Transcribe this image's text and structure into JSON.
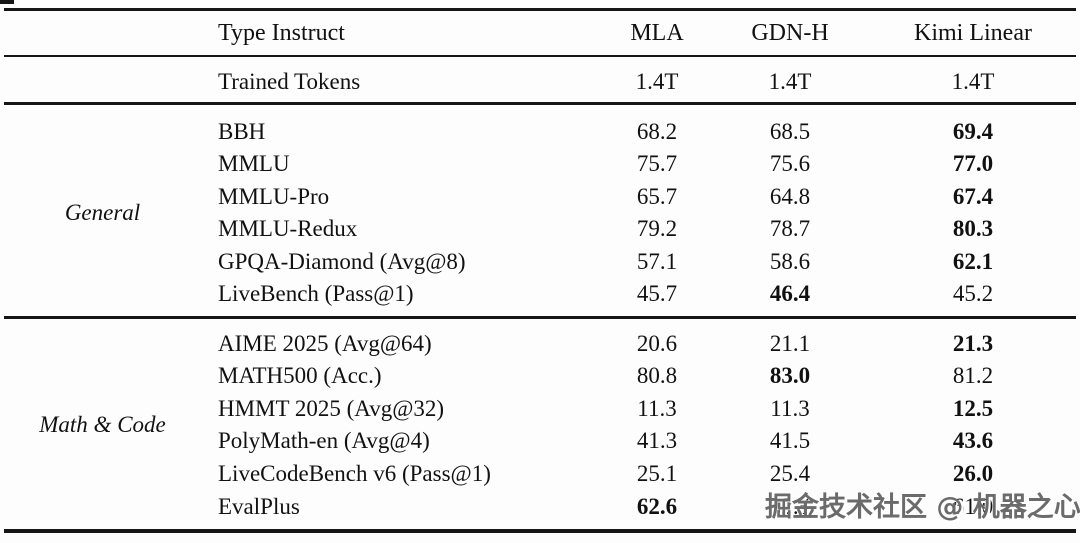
{
  "table": {
    "header": {
      "row_label": "Type Instruct",
      "columns": [
        "MLA",
        "GDN-H",
        "Kimi Linear"
      ]
    },
    "meta_row": {
      "label": "Trained Tokens",
      "values": [
        "1.4T",
        "1.4T",
        "1.4T"
      ]
    },
    "sections": [
      {
        "group": "General",
        "rows": [
          {
            "label": "BBH",
            "cells": [
              {
                "v": "68.2",
                "bold": false
              },
              {
                "v": "68.5",
                "bold": false
              },
              {
                "v": "69.4",
                "bold": true
              }
            ]
          },
          {
            "label": "MMLU",
            "cells": [
              {
                "v": "75.7",
                "bold": false
              },
              {
                "v": "75.6",
                "bold": false
              },
              {
                "v": "77.0",
                "bold": true
              }
            ]
          },
          {
            "label": "MMLU-Pro",
            "cells": [
              {
                "v": "65.7",
                "bold": false
              },
              {
                "v": "64.8",
                "bold": false
              },
              {
                "v": "67.4",
                "bold": true
              }
            ]
          },
          {
            "label": "MMLU-Redux",
            "cells": [
              {
                "v": "79.2",
                "bold": false
              },
              {
                "v": "78.7",
                "bold": false
              },
              {
                "v": "80.3",
                "bold": true
              }
            ]
          },
          {
            "label": "GPQA-Diamond (Avg@8)",
            "cells": [
              {
                "v": "57.1",
                "bold": false
              },
              {
                "v": "58.6",
                "bold": false
              },
              {
                "v": "62.1",
                "bold": true
              }
            ]
          },
          {
            "label": "LiveBench (Pass@1)",
            "cells": [
              {
                "v": "45.7",
                "bold": false
              },
              {
                "v": "46.4",
                "bold": true
              },
              {
                "v": "45.2",
                "bold": false
              }
            ]
          }
        ]
      },
      {
        "group": "Math & Code",
        "rows": [
          {
            "label": "AIME 2025 (Avg@64)",
            "cells": [
              {
                "v": "20.6",
                "bold": false
              },
              {
                "v": "21.1",
                "bold": false
              },
              {
                "v": "21.3",
                "bold": true
              }
            ]
          },
          {
            "label": "MATH500 (Acc.)",
            "cells": [
              {
                "v": "80.8",
                "bold": false
              },
              {
                "v": "83.0",
                "bold": true
              },
              {
                "v": "81.2",
                "bold": false
              }
            ]
          },
          {
            "label": "HMMT 2025 (Avg@32)",
            "cells": [
              {
                "v": "11.3",
                "bold": false
              },
              {
                "v": "11.3",
                "bold": false
              },
              {
                "v": "12.5",
                "bold": true
              }
            ]
          },
          {
            "label": "PolyMath-en (Avg@4)",
            "cells": [
              {
                "v": "41.3",
                "bold": false
              },
              {
                "v": "41.5",
                "bold": false
              },
              {
                "v": "43.6",
                "bold": true
              }
            ]
          },
          {
            "label": "LiveCodeBench v6 (Pass@1)",
            "cells": [
              {
                "v": "25.1",
                "bold": false
              },
              {
                "v": "25.4",
                "bold": false
              },
              {
                "v": "26.0",
                "bold": true
              }
            ]
          },
          {
            "label": "EvalPlus",
            "cells": [
              {
                "v": "62.6",
                "bold": true
              },
              {
                "v": "62.5",
                "bold": false
              },
              {
                "v": "61.0",
                "bold": false
              }
            ]
          }
        ]
      }
    ]
  },
  "watermark": {
    "text": "掘金技术社区 @ 机器之心",
    "color": "#6b6b6b"
  },
  "colors": {
    "text": "#111111",
    "rule": "#161616"
  }
}
